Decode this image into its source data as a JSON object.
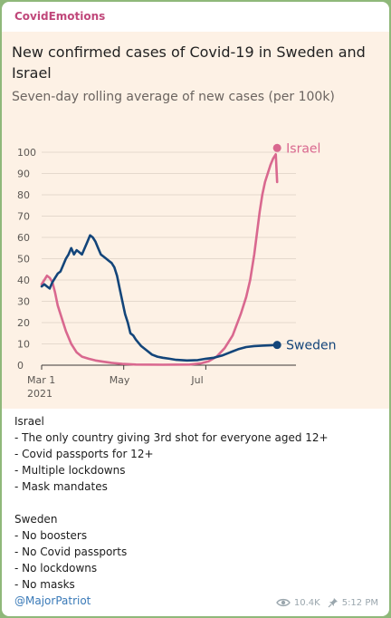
{
  "channel": {
    "name": "CovidEmotions"
  },
  "chart_data": {
    "type": "line",
    "title": "New confirmed cases of Covid-19 in Sweden and Israel",
    "subtitle": "Seven-day rolling average of new cases (per 100k)",
    "ylim": [
      0,
      100
    ],
    "yticks": [
      "0",
      "10",
      "20",
      "30",
      "40",
      "50",
      "60",
      "70",
      "80",
      "90",
      "100"
    ],
    "xticks": [
      {
        "day": 0,
        "label": "Mar 1",
        "sub": "2021"
      },
      {
        "day": 61,
        "label": "May",
        "sub": ""
      },
      {
        "day": 122,
        "label": "Jul",
        "sub": ""
      }
    ],
    "x_origin_date": "2021-03-01",
    "xlim_days": [
      0,
      189
    ],
    "series": [
      {
        "name": "Israel",
        "color": "#d9688f",
        "points": [
          [
            0,
            38
          ],
          [
            2,
            40
          ],
          [
            4,
            42
          ],
          [
            6,
            41
          ],
          [
            8,
            39
          ],
          [
            10,
            34
          ],
          [
            12,
            28
          ],
          [
            15,
            22
          ],
          [
            18,
            16
          ],
          [
            22,
            10
          ],
          [
            26,
            6
          ],
          [
            30,
            4
          ],
          [
            35,
            3
          ],
          [
            40,
            2.2
          ],
          [
            46,
            1.6
          ],
          [
            52,
            1.1
          ],
          [
            60,
            0.6
          ],
          [
            70,
            0.3
          ],
          [
            90,
            0.2
          ],
          [
            110,
            0.3
          ],
          [
            118,
            0.8
          ],
          [
            124,
            1.8
          ],
          [
            130,
            4
          ],
          [
            136,
            8
          ],
          [
            142,
            14
          ],
          [
            148,
            24
          ],
          [
            152,
            32
          ],
          [
            155,
            40
          ],
          [
            158,
            52
          ],
          [
            160,
            62
          ],
          [
            162,
            72
          ],
          [
            164,
            80
          ],
          [
            166,
            86
          ],
          [
            168,
            90
          ],
          [
            170,
            94
          ],
          [
            172,
            97
          ],
          [
            174,
            99
          ],
          [
            175,
            86
          ]
        ]
      },
      {
        "name": "Sweden",
        "color": "#13457a",
        "points": [
          [
            0,
            37
          ],
          [
            2,
            38
          ],
          [
            4,
            37
          ],
          [
            6,
            36
          ],
          [
            8,
            39
          ],
          [
            10,
            41
          ],
          [
            12,
            43
          ],
          [
            14,
            44
          ],
          [
            16,
            47
          ],
          [
            18,
            50
          ],
          [
            20,
            52
          ],
          [
            22,
            55
          ],
          [
            24,
            52
          ],
          [
            26,
            54
          ],
          [
            28,
            53
          ],
          [
            30,
            52
          ],
          [
            32,
            55
          ],
          [
            34,
            58
          ],
          [
            36,
            61
          ],
          [
            38,
            60
          ],
          [
            40,
            58
          ],
          [
            42,
            55
          ],
          [
            44,
            52
          ],
          [
            46,
            51
          ],
          [
            48,
            50
          ],
          [
            50,
            49
          ],
          [
            52,
            48
          ],
          [
            54,
            46
          ],
          [
            56,
            42
          ],
          [
            58,
            36
          ],
          [
            60,
            30
          ],
          [
            62,
            24
          ],
          [
            64,
            20
          ],
          [
            66,
            15
          ],
          [
            68,
            14
          ],
          [
            70,
            12
          ],
          [
            74,
            9
          ],
          [
            78,
            7
          ],
          [
            82,
            5
          ],
          [
            86,
            4
          ],
          [
            90,
            3.5
          ],
          [
            95,
            3
          ],
          [
            100,
            2.5
          ],
          [
            108,
            2.2
          ],
          [
            116,
            2.4
          ],
          [
            122,
            3
          ],
          [
            128,
            3.5
          ],
          [
            134,
            4.5
          ],
          [
            140,
            6
          ],
          [
            146,
            7.5
          ],
          [
            152,
            8.5
          ],
          [
            158,
            9
          ],
          [
            164,
            9.2
          ],
          [
            170,
            9.3
          ],
          [
            175,
            9.5
          ]
        ]
      }
    ]
  },
  "message": {
    "lines": [
      "Israel",
      "- The only country giving 3rd shot for everyone aged 12+",
      "- Covid passports for 12+",
      "- Multiple lockdowns",
      "- Mask mandates",
      "",
      "Sweden",
      "- No boosters",
      "- No Covid passports",
      "- No lockdowns",
      "- No masks"
    ],
    "mention": "@MajorPatriot"
  },
  "meta": {
    "views": "10.4K",
    "time": "5:12 PM",
    "view_icon": "eye-icon",
    "pin_icon": "pin-icon"
  }
}
